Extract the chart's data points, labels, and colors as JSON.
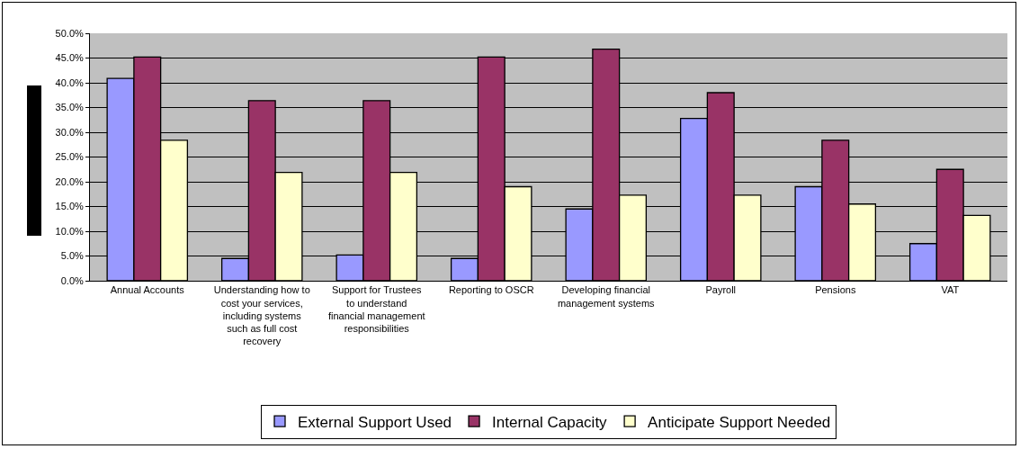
{
  "chart_data": {
    "type": "bar",
    "categories": [
      "Annual Accounts",
      "Understanding how to cost your services, including systems such as full cost recovery",
      "Support for Trustees to understand financial management responsibilities",
      "Reporting to OSCR",
      "Developing financial management systems",
      "Payroll",
      "Pensions",
      "VAT"
    ],
    "series": [
      {
        "name": "External Support Used",
        "color": "#9999ff",
        "values": [
          40.9,
          4.5,
          5.2,
          4.5,
          14.5,
          32.8,
          19.0,
          7.5
        ]
      },
      {
        "name": "Internal Capacity",
        "color": "#993366",
        "values": [
          45.2,
          36.4,
          36.4,
          45.2,
          46.8,
          38.0,
          28.4,
          22.5
        ]
      },
      {
        "name": "Anticipate Support Needed",
        "color": "#ffffcc",
        "values": [
          28.4,
          21.9,
          21.9,
          19.0,
          17.3,
          17.3,
          15.5,
          13.2
        ]
      }
    ],
    "ylim": [
      0,
      50
    ],
    "yticks": [
      {
        "value": 0,
        "label": "0.0%"
      },
      {
        "value": 5,
        "label": "5.0%"
      },
      {
        "value": 10,
        "label": "10.0%"
      },
      {
        "value": 15,
        "label": "15.0%"
      },
      {
        "value": 20,
        "label": "20.0%"
      },
      {
        "value": 25,
        "label": "25.0%"
      },
      {
        "value": 30,
        "label": "30.0%"
      },
      {
        "value": 35,
        "label": "35.0%"
      },
      {
        "value": 40,
        "label": "40.0%"
      },
      {
        "value": 45,
        "label": "45.0%"
      },
      {
        "value": 50,
        "label": "50.0%"
      }
    ],
    "grid": "y",
    "legend": "bottom"
  }
}
